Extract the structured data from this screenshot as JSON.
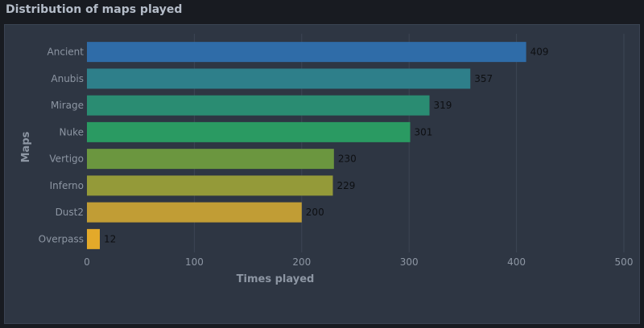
{
  "panel": {
    "title": "Distribution of maps played"
  },
  "chart_data": {
    "type": "bar",
    "orientation": "horizontal",
    "categories": [
      "Ancient",
      "Anubis",
      "Mirage",
      "Nuke",
      "Vertigo",
      "Inferno",
      "Dust2",
      "Overpass"
    ],
    "values": [
      409,
      357,
      319,
      301,
      230,
      229,
      200,
      12
    ],
    "colors": [
      "#2f6ca8",
      "#2e7f8a",
      "#2a8c72",
      "#2a9a62",
      "#6b963f",
      "#949a39",
      "#c19d35",
      "#e3a92a"
    ],
    "xlabel": "Times played",
    "ylabel": "Maps",
    "xlim": [
      0,
      500
    ],
    "xticks": [
      0,
      100,
      200,
      300,
      400,
      500
    ],
    "grid": true,
    "data_labels": true,
    "theme": {
      "background": "#2e3643",
      "grid_color": "#3c4554",
      "tick_label_color": "#8d96a3",
      "axis_title_color": "#8d96a3",
      "data_label_color": "#0d0f12"
    }
  }
}
